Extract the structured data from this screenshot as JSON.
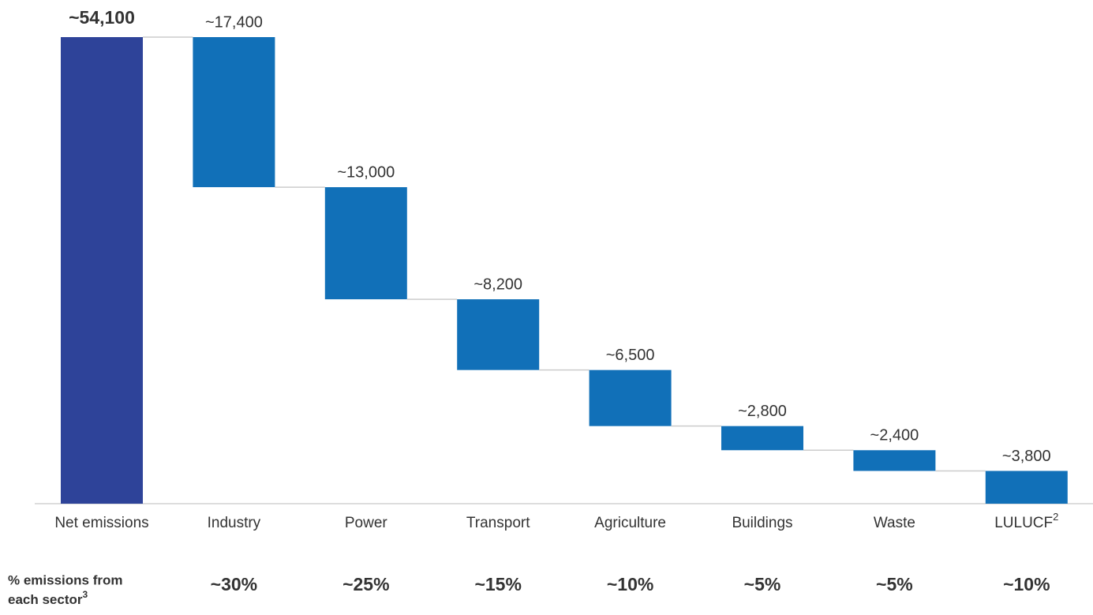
{
  "chart_data": {
    "type": "waterfall",
    "categories": [
      "Net emissions",
      "Industry",
      "Power",
      "Transport",
      "Agriculture",
      "Buildings",
      "Waste",
      "LULUCF"
    ],
    "category_superscripts": [
      null,
      null,
      null,
      null,
      null,
      null,
      null,
      "2"
    ],
    "values": [
      54100,
      17400,
      13000,
      8200,
      6500,
      2800,
      2400,
      3800
    ],
    "value_labels": [
      "~54,100",
      "~17,400",
      "~13,000",
      "~8,200",
      "~6,500",
      "~2,800",
      "~2,400",
      "~3,800"
    ],
    "total_color": "#2e4399",
    "color": "#1170b8",
    "share_label": [
      "% emissions from",
      "each sector"
    ],
    "share_label_superscript": "3",
    "share_values": [
      null,
      30,
      25,
      15,
      10,
      5,
      5,
      10
    ],
    "share_labels": [
      null,
      "~30%",
      "~25%",
      "~15%",
      "~10%",
      "~5%",
      "~5%",
      "~10%"
    ]
  }
}
